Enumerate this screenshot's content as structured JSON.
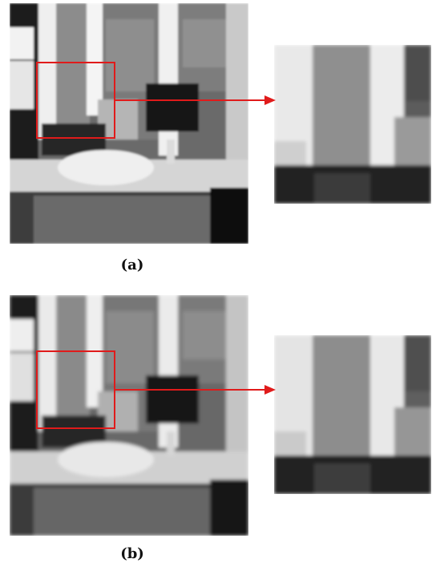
{
  "panels": [
    {
      "caption": "(a)"
    },
    {
      "caption": "(b)"
    }
  ],
  "colors": {
    "highlight": "#e01b1b"
  }
}
